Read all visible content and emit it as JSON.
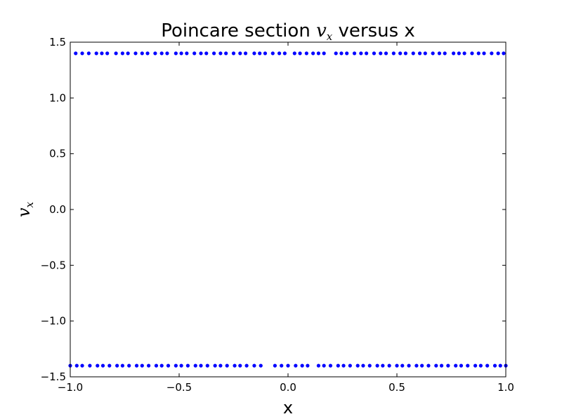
{
  "chart_data": {
    "type": "scatter",
    "title": {
      "prefix": "Poincare section ",
      "math_main": "v",
      "math_sub": "x",
      "suffix": " versus x"
    },
    "xlabel": "x",
    "ylabel": {
      "main": "v",
      "sub": "x"
    },
    "xlim": [
      -1.0,
      1.0
    ],
    "ylim": [
      -1.5,
      1.5
    ],
    "x_ticks": [
      -1.0,
      -0.5,
      0.0,
      0.5,
      1.0
    ],
    "x_tick_labels": [
      "−1.0",
      "−0.5",
      "0.0",
      "0.5",
      "1.0"
    ],
    "y_ticks": [
      1.5,
      1.0,
      0.5,
      0.0,
      -0.5,
      -1.0,
      -1.5
    ],
    "y_tick_labels": [
      "1.5",
      "1.0",
      "0.5",
      "0.0",
      "−0.5",
      "−1.0",
      "−1.5"
    ],
    "grid": false,
    "marker_color": "#0000ff",
    "series": [
      {
        "values_y": 1.4,
        "x": [
          -0.975,
          -0.945,
          -0.915,
          -0.88,
          -0.855,
          -0.83,
          -0.79,
          -0.76,
          -0.735,
          -0.7,
          -0.67,
          -0.645,
          -0.61,
          -0.58,
          -0.555,
          -0.515,
          -0.49,
          -0.465,
          -0.43,
          -0.4,
          -0.375,
          -0.34,
          -0.31,
          -0.285,
          -0.25,
          -0.22,
          -0.195,
          -0.155,
          -0.13,
          -0.105,
          -0.07,
          -0.04,
          -0.015,
          0.03,
          0.055,
          0.085,
          0.115,
          0.14,
          0.165,
          0.22,
          0.245,
          0.27,
          0.305,
          0.335,
          0.36,
          0.395,
          0.425,
          0.45,
          0.485,
          0.515,
          0.54,
          0.575,
          0.605,
          0.63,
          0.665,
          0.695,
          0.72,
          0.76,
          0.785,
          0.81,
          0.845,
          0.875,
          0.9,
          0.935,
          0.965,
          0.99
        ]
      },
      {
        "values_y": -1.4,
        "x": [
          -1.0,
          -0.97,
          -0.945,
          -0.91,
          -0.875,
          -0.85,
          -0.82,
          -0.785,
          -0.76,
          -0.73,
          -0.695,
          -0.67,
          -0.64,
          -0.605,
          -0.58,
          -0.55,
          -0.515,
          -0.49,
          -0.46,
          -0.425,
          -0.4,
          -0.37,
          -0.335,
          -0.31,
          -0.28,
          -0.245,
          -0.22,
          -0.19,
          -0.155,
          -0.125,
          -0.06,
          -0.03,
          0.0,
          0.035,
          0.065,
          0.09,
          0.14,
          0.165,
          0.195,
          0.23,
          0.255,
          0.285,
          0.32,
          0.345,
          0.375,
          0.41,
          0.435,
          0.465,
          0.5,
          0.525,
          0.555,
          0.59,
          0.615,
          0.645,
          0.68,
          0.705,
          0.735,
          0.77,
          0.795,
          0.825,
          0.86,
          0.885,
          0.915,
          0.95,
          0.975,
          1.0
        ]
      }
    ]
  }
}
